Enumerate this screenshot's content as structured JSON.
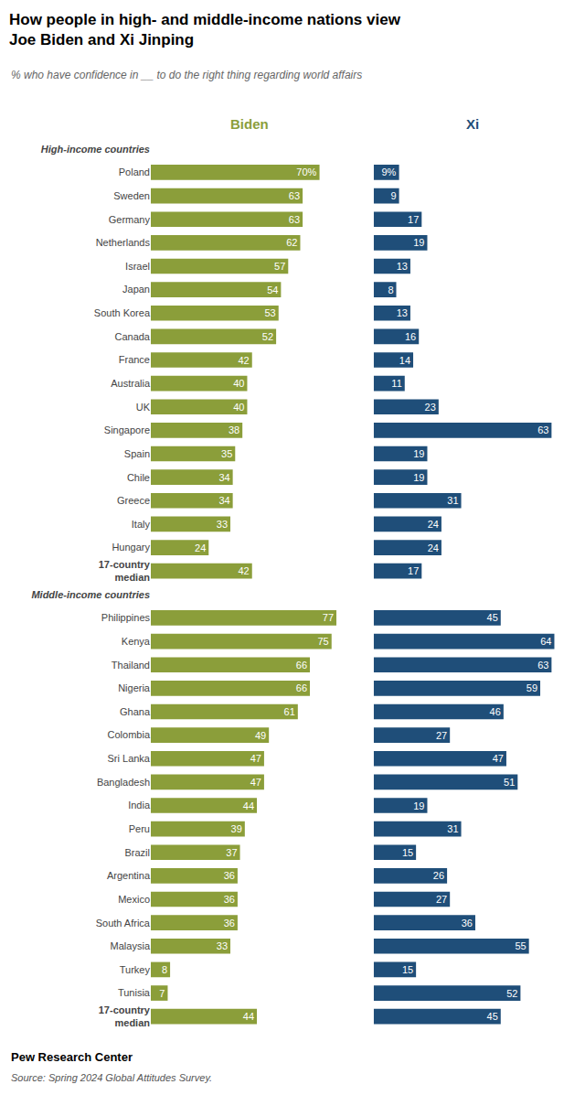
{
  "chart_data": [
    {
      "type": "bar",
      "orientation": "horizontal",
      "title": "How people in high- and middle-income nations view\nJoe Biden and Xi Jinping",
      "subtitle": "% who have confidence in __ to do the right thing regarding world affairs",
      "annotations": [
        "Pew Research Center",
        "Source: Spring 2024 Global Attitudes Survey."
      ],
      "categories": [
        "High-income countries",
        "Poland",
        "Sweden",
        "Germany",
        "Netherlands",
        "Israel",
        "Japan",
        "South Korea",
        "Canada",
        "France",
        "Australia",
        "UK",
        "Singapore",
        "Spain",
        "Chile",
        "Greece",
        "Italy",
        "Hungary",
        "17-country\nmedian",
        "Middle-income countries",
        "Philippines",
        "Kenya",
        "Thailand",
        "Nigeria",
        "Ghana",
        "Colombia",
        "Sri Lanka",
        "Bangladesh",
        "India",
        "Peru",
        "Brazil",
        "Argentina",
        "Mexico",
        "South Africa",
        "Malaysia",
        "Turkey",
        "Tunisia",
        "17-country\nmedian"
      ],
      "series": [
        {
          "name": "Biden",
          "color": "#8B9E3A",
          "values": [
            null,
            70,
            63,
            63,
            62,
            57,
            54,
            53,
            52,
            42,
            40,
            40,
            38,
            35,
            34,
            34,
            33,
            24,
            42,
            null,
            77,
            75,
            66,
            66,
            61,
            49,
            47,
            47,
            44,
            39,
            37,
            36,
            36,
            36,
            33,
            8,
            7,
            44
          ],
          "value_labels": [
            null,
            "70%",
            "63",
            "63",
            "62",
            "57",
            "54",
            "53",
            "52",
            "42",
            "40",
            "40",
            "38",
            "35",
            "34",
            "34",
            "33",
            "24",
            "42",
            null,
            "77",
            "75",
            "66",
            "66",
            "61",
            "49",
            "47",
            "47",
            "44",
            "39",
            "37",
            "36",
            "36",
            "36",
            "33",
            "8",
            "7",
            "44"
          ]
        }
      ],
      "xlim": [
        0,
        82
      ],
      "data_labels": true,
      "tick_labels": "y",
      "grid": false
    },
    {
      "type": "bar",
      "orientation": "horizontal",
      "categories": [
        "High-income countries",
        "Poland",
        "Sweden",
        "Germany",
        "Netherlands",
        "Israel",
        "Japan",
        "South Korea",
        "Canada",
        "France",
        "Australia",
        "UK",
        "Singapore",
        "Spain",
        "Chile",
        "Greece",
        "Italy",
        "Hungary",
        "17-country\nmedian",
        "Middle-income countries",
        "Philippines",
        "Kenya",
        "Thailand",
        "Nigeria",
        "Ghana",
        "Colombia",
        "Sri Lanka",
        "Bangladesh",
        "India",
        "Peru",
        "Brazil",
        "Argentina",
        "Mexico",
        "South Africa",
        "Malaysia",
        "Turkey",
        "Tunisia",
        "17-country\nmedian"
      ],
      "series": [
        {
          "name": "Xi",
          "color": "#1F4E79",
          "values": [
            null,
            9,
            9,
            17,
            19,
            13,
            8,
            13,
            16,
            14,
            11,
            23,
            63,
            19,
            19,
            31,
            24,
            24,
            17,
            null,
            45,
            64,
            63,
            59,
            46,
            27,
            47,
            51,
            19,
            31,
            15,
            26,
            27,
            36,
            55,
            15,
            52,
            45
          ],
          "value_labels": [
            null,
            "9%",
            "9",
            "17",
            "19",
            "13",
            "8",
            "13",
            "16",
            "14",
            "11",
            "23",
            "63",
            "19",
            "19",
            "31",
            "24",
            "24",
            "17",
            null,
            "45",
            "64",
            "63",
            "59",
            "46",
            "27",
            "47",
            "51",
            "19",
            "31",
            "15",
            "26",
            "27",
            "36",
            "55",
            "15",
            "52",
            "45"
          ]
        }
      ],
      "xlim": [
        0,
        70
      ],
      "data_labels": true,
      "tick_labels": false,
      "grid": false
    }
  ]
}
